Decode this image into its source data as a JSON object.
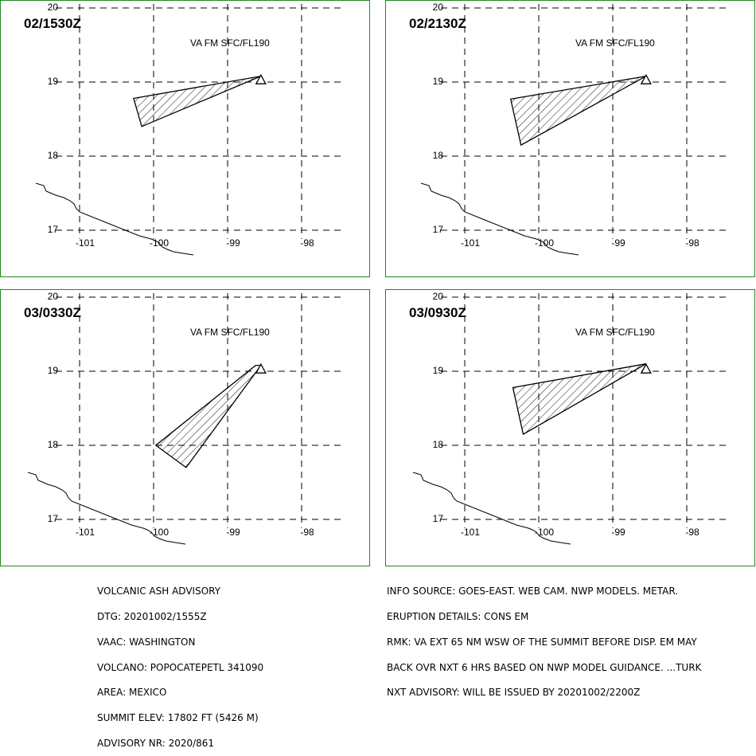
{
  "colors": {
    "frame": "#1f8a1f",
    "grid": "#000000",
    "plume": "#000000",
    "background": "#ffffff"
  },
  "panels": [
    {
      "title": "02/1530Z",
      "note": "VA FM SFC/FL190",
      "polygon": [
        [
          -100.27,
          18.78
        ],
        [
          -98.55,
          19.08
        ],
        [
          -100.16,
          18.4
        ]
      ]
    },
    {
      "title": "02/2130Z",
      "note": "VA FM SFC/FL190",
      "polygon": [
        [
          -100.38,
          18.77
        ],
        [
          -98.55,
          19.08
        ],
        [
          -100.24,
          18.15
        ]
      ]
    },
    {
      "title": "03/0330Z",
      "note": "VA FM SFC/FL190",
      "polygon": [
        [
          -98.62,
          19.08
        ],
        [
          -99.97,
          18.0
        ],
        [
          -99.56,
          17.7
        ],
        [
          -98.55,
          19.08
        ]
      ]
    },
    {
      "title": "03/0930Z",
      "note": "VA FM SFC/FL190",
      "polygon": [
        [
          -100.35,
          18.78
        ],
        [
          -98.55,
          19.1
        ],
        [
          -100.21,
          18.15
        ]
      ]
    }
  ],
  "map": {
    "lat_labels": [
      "20",
      "19",
      "18",
      "17"
    ],
    "lon_labels": [
      "-101",
      "-100",
      "-99",
      "-98"
    ],
    "volcano_symbol": "triangle-icon"
  },
  "advisory_left": [
    "VOLCANIC ASH ADVISORY",
    "DTG: 20201002/1555Z",
    "VAAC: WASHINGTON",
    "VOLCANO: POPOCATEPETL 341090",
    "AREA: MEXICO",
    "SUMMIT ELEV: 17802 FT (5426 M)",
    "ADVISORY NR: 2020/861"
  ],
  "advisory_right": [
    "INFO SOURCE: GOES-EAST. WEB CAM. NWP MODELS. METAR.",
    "ERUPTION DETAILS: CONS EM",
    "RMK: VA EXT 65 NM WSW OF THE SUMMIT BEFORE DISP. EM MAY",
    "BACK OVR NXT 6 HRS BASED ON NWP MODEL GUIDANCE. ...TURK",
    "NXT ADVISORY: WILL BE ISSUED BY 20201002/2200Z"
  ]
}
